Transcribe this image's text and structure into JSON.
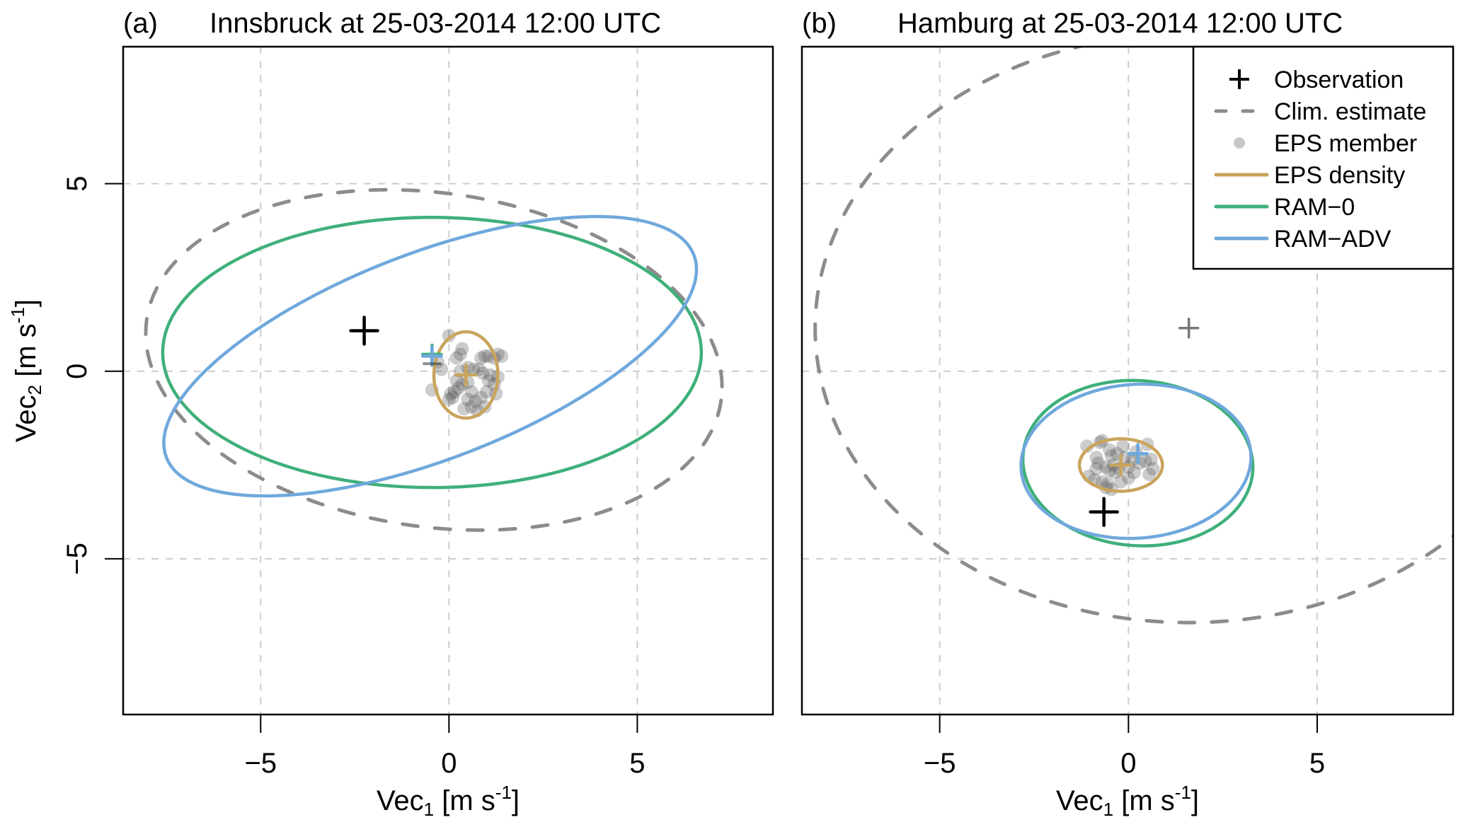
{
  "chart_data": [
    {
      "type": "scatter",
      "panel_label": "(a)",
      "title": "Innsbruck at 25-03-2014 12:00 UTC",
      "xlabel": {
        "base": "Vec",
        "sub": "1",
        "unit": " [m s",
        "sup": "-1",
        "close": "]"
      },
      "ylabel": {
        "base": "Vec",
        "sub": "2",
        "unit": " [m s",
        "sup": "-1",
        "close": "]"
      },
      "xlim": [
        -8.65,
        8.6
      ],
      "ylim": [
        -9.15,
        8.65
      ],
      "xticks": [
        -5,
        0,
        5
      ],
      "yticks": [
        -5,
        0,
        5
      ],
      "xtick_labels": [
        "−5",
        "0",
        "5"
      ],
      "ytick_labels": [
        "−5",
        "0",
        "5"
      ],
      "grid": true,
      "observation": {
        "x": -2.25,
        "y": 1.08
      },
      "clim_estimate": {
        "center": [
          -0.4,
          0.3
        ],
        "semi_axes": [
          7.7,
          4.45
        ],
        "angle_deg": -8
      },
      "eps_density": {
        "center": [
          0.45,
          -0.1
        ],
        "semi_axes": [
          0.85,
          1.15
        ],
        "angle_deg": 0,
        "mean": [
          0.45,
          -0.1
        ]
      },
      "ram0": {
        "center": [
          -0.45,
          0.5
        ],
        "semi_axes": [
          7.15,
          3.6
        ],
        "angle_deg": 0,
        "mean": [
          -0.45,
          0.45
        ]
      },
      "ram_adv": {
        "center": [
          -0.5,
          0.4
        ],
        "semi_axes": [
          7.5,
          2.75
        ],
        "angle_deg": 21,
        "mean": [
          -0.45,
          0.4
        ]
      },
      "ram_adv_prev_mean": [
        -0.45,
        0.2
      ],
      "eps_members": [
        [
          0.0,
          0.95
        ],
        [
          0.3,
          0.45
        ],
        [
          0.35,
          0.6
        ],
        [
          0.2,
          0.35
        ],
        [
          0.95,
          0.4
        ],
        [
          1.05,
          0.4
        ],
        [
          1.2,
          0.35
        ],
        [
          1.3,
          0.45
        ],
        [
          1.4,
          0.4
        ],
        [
          0.85,
          0.35
        ],
        [
          -0.3,
          0.25
        ],
        [
          -0.45,
          -0.5
        ],
        [
          -0.2,
          0.05
        ],
        [
          0.3,
          0.0
        ],
        [
          0.5,
          0.1
        ],
        [
          0.65,
          0.05
        ],
        [
          0.8,
          0.05
        ],
        [
          0.9,
          -0.05
        ],
        [
          1.1,
          -0.1
        ],
        [
          1.3,
          -0.15
        ],
        [
          0.2,
          -0.25
        ],
        [
          0.35,
          -0.35
        ],
        [
          0.05,
          -0.6
        ],
        [
          0.15,
          -0.55
        ],
        [
          0.25,
          -0.45
        ],
        [
          0.0,
          -0.75
        ],
        [
          0.1,
          -0.7
        ],
        [
          0.5,
          -0.75
        ],
        [
          0.6,
          -0.55
        ],
        [
          0.7,
          -0.8
        ],
        [
          0.85,
          -0.7
        ],
        [
          1.0,
          -0.55
        ],
        [
          1.2,
          -0.35
        ],
        [
          1.25,
          -0.6
        ],
        [
          0.4,
          -1.0
        ],
        [
          0.75,
          -1.05
        ],
        [
          0.95,
          -0.95
        ],
        [
          0.6,
          -0.95
        ],
        [
          1.05,
          -0.25
        ],
        [
          0.5,
          -0.3
        ]
      ]
    },
    {
      "type": "scatter",
      "panel_label": "(b)",
      "title": "Hamburg at 25-03-2014 12:00 UTC",
      "xlabel": {
        "base": "Vec",
        "sub": "1",
        "unit": " [m s",
        "sup": "-1",
        "close": "]"
      },
      "ylabel": null,
      "xlim": [
        -8.65,
        8.6
      ],
      "ylim": [
        -9.15,
        8.65
      ],
      "xticks": [
        -5,
        0,
        5
      ],
      "yticks": [
        -5,
        0,
        5
      ],
      "xtick_labels": [
        "−5",
        "0",
        "5"
      ],
      "ytick_labels": [],
      "grid": true,
      "observation": {
        "x": -0.65,
        "y": -3.75
      },
      "clim_mean": {
        "x": 1.6,
        "y": 1.15
      },
      "clim_estimate": {
        "center": [
          1.6,
          1.15
        ],
        "semi_axes": [
          9.9,
          7.85
        ],
        "angle_deg": 0
      },
      "eps_density": {
        "center": [
          -0.2,
          -2.5
        ],
        "semi_axes": [
          1.1,
          0.7
        ],
        "angle_deg": 0,
        "mean": [
          -0.2,
          -2.5
        ]
      },
      "ram0": {
        "center": [
          0.25,
          -2.45
        ],
        "semi_axes": [
          3.05,
          2.2
        ],
        "angle_deg": -4,
        "mean": [
          0.25,
          -2.2
        ]
      },
      "ram_adv": {
        "center": [
          0.2,
          -2.4
        ],
        "semi_axes": [
          3.05,
          2.05
        ],
        "angle_deg": 4,
        "mean": [
          0.25,
          -2.2
        ]
      },
      "eps_members": [
        [
          -1.1,
          -2.0
        ],
        [
          -0.75,
          -1.9
        ],
        [
          -0.7,
          -1.85
        ],
        [
          0.5,
          -1.95
        ],
        [
          -0.5,
          -2.1
        ],
        [
          -0.45,
          -2.25
        ],
        [
          -0.3,
          -2.2
        ],
        [
          -0.1,
          -2.3
        ],
        [
          0.1,
          -2.35
        ],
        [
          -0.85,
          -2.3
        ],
        [
          -0.8,
          -2.45
        ],
        [
          -0.6,
          -2.55
        ],
        [
          -0.5,
          -2.65
        ],
        [
          -0.4,
          -2.5
        ],
        [
          -0.35,
          -2.7
        ],
        [
          -0.25,
          -2.6
        ],
        [
          0.0,
          -2.55
        ],
        [
          0.3,
          -2.45
        ],
        [
          0.45,
          -2.4
        ],
        [
          0.6,
          -2.35
        ],
        [
          0.65,
          -2.6
        ],
        [
          0.55,
          -2.75
        ],
        [
          -1.05,
          -2.8
        ],
        [
          -0.9,
          -2.9
        ],
        [
          -0.7,
          -2.95
        ],
        [
          -0.55,
          -3.0
        ],
        [
          -0.6,
          -3.1
        ],
        [
          -0.45,
          -3.15
        ],
        [
          0.0,
          -2.85
        ],
        [
          0.15,
          -2.7
        ],
        [
          -0.2,
          -2.95
        ],
        [
          -0.85,
          -2.6
        ],
        [
          -0.15,
          -2.0
        ],
        [
          0.2,
          -2.15
        ]
      ]
    }
  ],
  "legend": {
    "position": "top-right",
    "items": [
      {
        "label": "Observation",
        "symbol": "plus",
        "color": "#000000"
      },
      {
        "label": "Clim. estimate",
        "symbol": "dashed-line",
        "color": "#8c8c8c"
      },
      {
        "label": "EPS member",
        "symbol": "dot",
        "color": "#c8c8c8"
      },
      {
        "label": "EPS density",
        "symbol": "line",
        "color": "#c9a45c"
      },
      {
        "label": "RAM−0",
        "symbol": "line",
        "color": "#3fb07a"
      },
      {
        "label": "RAM−ADV",
        "symbol": "line",
        "color": "#6fa8dc"
      }
    ]
  },
  "colors": {
    "observation": "#000000",
    "clim": "#8c8c8c",
    "eps_member": "#555555",
    "eps_density": "#c9a45c",
    "ram0": "#3fb07a",
    "ram_adv": "#6fa8dc",
    "grid": "#cccccc"
  }
}
